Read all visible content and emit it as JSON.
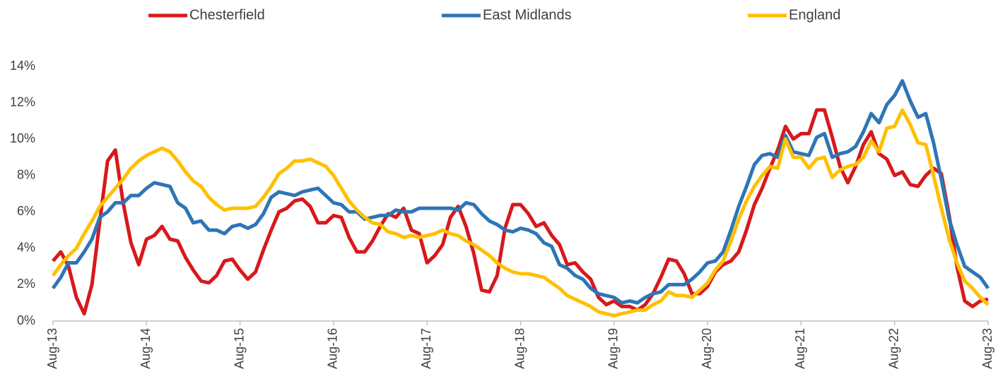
{
  "chart_data": {
    "type": "line",
    "categories": [
      "Aug-13",
      null,
      null,
      null,
      null,
      null,
      null,
      null,
      null,
      null,
      null,
      null,
      "Aug-14",
      null,
      null,
      null,
      null,
      null,
      null,
      null,
      null,
      null,
      null,
      null,
      "Aug-15",
      null,
      null,
      null,
      null,
      null,
      null,
      null,
      null,
      null,
      null,
      null,
      "Aug-16",
      null,
      null,
      null,
      null,
      null,
      null,
      null,
      null,
      null,
      null,
      null,
      "Aug-17",
      null,
      null,
      null,
      null,
      null,
      null,
      null,
      null,
      null,
      null,
      null,
      "Aug-18",
      null,
      null,
      null,
      null,
      null,
      null,
      null,
      null,
      null,
      null,
      null,
      "Aug-19",
      null,
      null,
      null,
      null,
      null,
      null,
      null,
      null,
      null,
      null,
      null,
      "Aug-20",
      null,
      null,
      null,
      null,
      null,
      null,
      null,
      null,
      null,
      null,
      null,
      "Aug-21",
      null,
      null,
      null,
      null,
      null,
      null,
      null,
      null,
      null,
      null,
      null,
      "Aug-22",
      null,
      null,
      null,
      null,
      null,
      null,
      null,
      null,
      null,
      null,
      null,
      "Aug-23"
    ],
    "series": [
      {
        "name": "Chesterfield",
        "color": "#d7191c",
        "values": [
          3.3,
          3.8,
          3.0,
          1.3,
          0.4,
          2.0,
          5.5,
          8.8,
          9.4,
          6.5,
          4.3,
          3.1,
          4.5,
          4.7,
          5.2,
          4.5,
          4.4,
          3.5,
          2.8,
          2.2,
          2.1,
          2.5,
          3.3,
          3.4,
          2.8,
          2.3,
          2.7,
          3.9,
          5.0,
          6.0,
          6.2,
          6.6,
          6.7,
          6.3,
          5.4,
          5.4,
          5.8,
          5.7,
          4.6,
          3.8,
          3.8,
          4.4,
          5.2,
          5.9,
          5.7,
          6.2,
          5.0,
          4.8,
          3.2,
          3.6,
          4.2,
          5.7,
          6.3,
          5.2,
          3.7,
          1.7,
          1.6,
          2.5,
          5.1,
          6.4,
          6.4,
          5.9,
          5.2,
          5.4,
          4.7,
          4.2,
          3.1,
          3.2,
          2.7,
          2.3,
          1.3,
          0.9,
          1.1,
          0.8,
          0.8,
          0.6,
          0.9,
          1.5,
          2.4,
          3.4,
          3.3,
          2.6,
          1.5,
          1.5,
          1.9,
          2.7,
          3.1,
          3.3,
          3.8,
          5.0,
          6.4,
          7.3,
          8.4,
          9.4,
          10.7,
          10.0,
          10.3,
          10.3,
          11.6,
          11.6,
          10.1,
          8.5,
          7.6,
          8.5,
          9.7,
          10.4,
          9.2,
          8.9,
          8.0,
          8.2,
          7.5,
          7.4,
          8.0,
          8.4,
          8.1,
          5.8,
          3.0,
          1.1,
          0.8,
          1.1,
          1.2
        ]
      },
      {
        "name": "East Midlands",
        "color": "#2e75b6",
        "values": [
          1.8,
          2.4,
          3.2,
          3.2,
          3.8,
          4.5,
          5.7,
          6.0,
          6.5,
          6.5,
          6.9,
          6.9,
          7.3,
          7.6,
          7.5,
          7.4,
          6.5,
          6.2,
          5.4,
          5.5,
          5.0,
          5.0,
          4.8,
          5.2,
          5.3,
          5.1,
          5.3,
          5.9,
          6.8,
          7.1,
          7.0,
          6.9,
          7.1,
          7.2,
          7.3,
          6.9,
          6.5,
          6.4,
          6.0,
          6.0,
          5.6,
          5.7,
          5.8,
          5.8,
          6.1,
          6.0,
          6.0,
          6.2,
          6.2,
          6.2,
          6.2,
          6.2,
          6.1,
          6.5,
          6.4,
          5.9,
          5.5,
          5.3,
          5.0,
          4.9,
          5.1,
          5.0,
          4.8,
          4.3,
          4.1,
          3.1,
          2.9,
          2.5,
          2.3,
          1.8,
          1.5,
          1.4,
          1.3,
          1.0,
          1.1,
          1.0,
          1.3,
          1.5,
          1.6,
          2.0,
          2.0,
          2.0,
          2.3,
          2.7,
          3.2,
          3.3,
          3.8,
          5.0,
          6.3,
          7.4,
          8.6,
          9.1,
          9.2,
          9.0,
          10.2,
          9.3,
          9.2,
          9.1,
          10.1,
          10.3,
          9.0,
          9.2,
          9.3,
          9.6,
          10.4,
          11.4,
          10.9,
          11.9,
          12.4,
          13.2,
          12.1,
          11.2,
          11.4,
          9.8,
          7.8,
          5.6,
          4.2,
          3.0,
          2.7,
          2.4,
          1.8
        ]
      },
      {
        "name": "England",
        "color": "#ffc000",
        "values": [
          2.5,
          3.1,
          3.6,
          4.0,
          4.8,
          5.5,
          6.3,
          6.8,
          7.3,
          7.8,
          8.4,
          8.8,
          9.1,
          9.3,
          9.5,
          9.3,
          8.8,
          8.2,
          7.7,
          7.4,
          6.8,
          6.4,
          6.1,
          6.2,
          6.2,
          6.2,
          6.3,
          6.8,
          7.4,
          8.1,
          8.4,
          8.8,
          8.8,
          8.9,
          8.7,
          8.5,
          8.0,
          7.3,
          6.6,
          6.1,
          5.7,
          5.4,
          5.3,
          4.9,
          4.8,
          4.6,
          4.7,
          4.6,
          4.7,
          4.8,
          5.0,
          4.8,
          4.7,
          4.4,
          4.2,
          3.9,
          3.6,
          3.2,
          2.9,
          2.7,
          2.6,
          2.6,
          2.5,
          2.4,
          2.1,
          1.8,
          1.4,
          1.2,
          1.0,
          0.8,
          0.5,
          0.4,
          0.3,
          0.4,
          0.5,
          0.6,
          0.6,
          0.9,
          1.1,
          1.6,
          1.4,
          1.4,
          1.3,
          1.7,
          2.1,
          2.8,
          3.3,
          4.4,
          5.6,
          6.6,
          7.4,
          8.0,
          8.5,
          8.4,
          10.0,
          9.0,
          9.0,
          8.4,
          8.9,
          9.0,
          7.9,
          8.3,
          8.5,
          8.6,
          9.0,
          9.9,
          9.3,
          10.6,
          10.7,
          11.6,
          10.8,
          9.8,
          9.7,
          8.0,
          6.2,
          4.5,
          3.2,
          2.2,
          1.8,
          1.3,
          0.9
        ]
      }
    ],
    "ylim": [
      0,
      14
    ],
    "yticks": [
      {
        "value": 0,
        "label": "0%"
      },
      {
        "value": 2,
        "label": "2%"
      },
      {
        "value": 4,
        "label": "4%"
      },
      {
        "value": 6,
        "label": "6%"
      },
      {
        "value": 8,
        "label": "8%"
      },
      {
        "value": 10,
        "label": "10%"
      },
      {
        "value": 12,
        "label": "12%"
      },
      {
        "value": 14,
        "label": "14%"
      }
    ],
    "grid": false,
    "legend": "top"
  }
}
